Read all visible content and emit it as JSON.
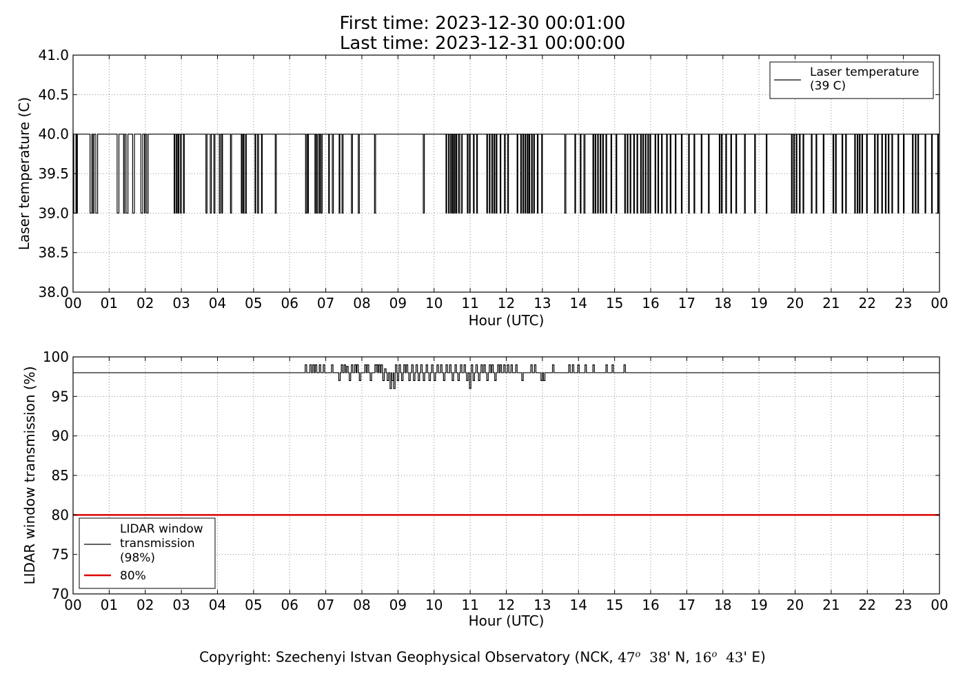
{
  "header": {
    "title_line1": "First time: 2023-12-30 00:01:00",
    "title_line2": "Last time: 2023-12-31 00:00:00"
  },
  "footer": {
    "prefix": "Copyright: Szechenyi Istvan Geophysical Observatory (NCK, ",
    "lat_deg": "47",
    "deg_sup": "o",
    "lat_min": "38",
    "lat_hemi": "' N, ",
    "lon_deg": "16",
    "lon_min": "43",
    "lon_hemi": "' E)"
  },
  "colors": {
    "series_line": "#000000",
    "threshold_line": "#dd0000",
    "grid": "#888888",
    "frame": "#000000"
  },
  "chart_data": [
    {
      "type": "line",
      "title": "",
      "xlabel": "Hour (UTC)",
      "ylabel": "Laser temperature (C)",
      "xlim": [
        0,
        24
      ],
      "ylim": [
        38.0,
        41.0
      ],
      "x_ticks": [
        "00",
        "01",
        "02",
        "03",
        "04",
        "05",
        "06",
        "07",
        "08",
        "09",
        "10",
        "11",
        "12",
        "13",
        "14",
        "15",
        "16",
        "17",
        "18",
        "19",
        "20",
        "21",
        "22",
        "23",
        "00"
      ],
      "y_ticks": [
        "38.0",
        "38.5",
        "39.0",
        "39.5",
        "40.0",
        "40.5",
        "41.0"
      ],
      "grid": true,
      "legend_position": "top-right",
      "series": [
        {
          "name": "Laser temperature\n(39 C)",
          "color": "#000000",
          "baseline": 40.0,
          "dip_value": 39.0,
          "dips_hours": [
            [
              0.02,
              0.08
            ],
            [
              0.1,
              0.12
            ],
            [
              0.47,
              0.52
            ],
            [
              0.55,
              0.58
            ],
            [
              0.63,
              0.68
            ],
            [
              1.22,
              1.27
            ],
            [
              1.4,
              1.43
            ],
            [
              1.47,
              1.52
            ],
            [
              1.65,
              1.7
            ],
            [
              1.88,
              1.93
            ],
            [
              1.98,
              2.0
            ],
            [
              2.04,
              2.08
            ],
            [
              2.8,
              2.82
            ],
            [
              2.86,
              2.88
            ],
            [
              2.91,
              2.93
            ],
            [
              2.97,
              3.0
            ],
            [
              3.06,
              3.08
            ],
            [
              3.68,
              3.71
            ],
            [
              3.8,
              3.83
            ],
            [
              3.9,
              3.93
            ],
            [
              4.05,
              4.08
            ],
            [
              4.12,
              4.14
            ],
            [
              4.36,
              4.39
            ],
            [
              4.66,
              4.68
            ],
            [
              4.71,
              4.73
            ],
            [
              4.77,
              4.8
            ],
            [
              5.04,
              5.06
            ],
            [
              5.11,
              5.14
            ],
            [
              5.22,
              5.24
            ],
            [
              5.6,
              5.63
            ],
            [
              6.44,
              6.47
            ],
            [
              6.5,
              6.52
            ],
            [
              6.7,
              6.72
            ],
            [
              6.75,
              6.78
            ],
            [
              6.82,
              6.84
            ],
            [
              6.87,
              6.9
            ],
            [
              7.08,
              7.1
            ],
            [
              7.18,
              7.21
            ],
            [
              7.37,
              7.39
            ],
            [
              7.45,
              7.48
            ],
            [
              7.71,
              7.74
            ],
            [
              7.9,
              7.93
            ],
            [
              8.35,
              8.38
            ],
            [
              9.7,
              9.73
            ],
            [
              10.33,
              10.35
            ],
            [
              10.4,
              10.42
            ],
            [
              10.46,
              10.48
            ],
            [
              10.51,
              10.53
            ],
            [
              10.56,
              10.58
            ],
            [
              10.61,
              10.63
            ],
            [
              10.68,
              10.7
            ],
            [
              10.75,
              10.78
            ],
            [
              10.92,
              10.94
            ],
            [
              10.98,
              11.0
            ],
            [
              11.09,
              11.11
            ],
            [
              11.18,
              11.2
            ],
            [
              11.46,
              11.48
            ],
            [
              11.53,
              11.55
            ],
            [
              11.6,
              11.62
            ],
            [
              11.66,
              11.68
            ],
            [
              11.72,
              11.74
            ],
            [
              11.83,
              11.85
            ],
            [
              11.95,
              11.97
            ],
            [
              12.04,
              12.06
            ],
            [
              12.3,
              12.32
            ],
            [
              12.4,
              12.42
            ],
            [
              12.46,
              12.48
            ],
            [
              12.52,
              12.54
            ],
            [
              12.58,
              12.6
            ],
            [
              12.63,
              12.65
            ],
            [
              12.7,
              12.72
            ],
            [
              12.76,
              12.78
            ],
            [
              12.86,
              12.88
            ],
            [
              12.98,
              13.0
            ],
            [
              13.62,
              13.65
            ],
            [
              13.9,
              13.92
            ],
            [
              14.05,
              14.07
            ],
            [
              14.15,
              14.18
            ],
            [
              14.4,
              14.42
            ],
            [
              14.46,
              14.48
            ],
            [
              14.53,
              14.55
            ],
            [
              14.6,
              14.62
            ],
            [
              14.67,
              14.69
            ],
            [
              14.76,
              14.78
            ],
            [
              14.9,
              14.92
            ],
            [
              15.04,
              15.06
            ],
            [
              15.28,
              15.3
            ],
            [
              15.35,
              15.37
            ],
            [
              15.43,
              15.45
            ],
            [
              15.53,
              15.55
            ],
            [
              15.62,
              15.64
            ],
            [
              15.72,
              15.74
            ],
            [
              15.78,
              15.8
            ],
            [
              15.85,
              15.87
            ],
            [
              15.92,
              15.94
            ],
            [
              15.98,
              16.0
            ],
            [
              16.12,
              16.14
            ],
            [
              16.2,
              16.22
            ],
            [
              16.3,
              16.32
            ],
            [
              16.44,
              16.46
            ],
            [
              16.54,
              16.56
            ],
            [
              16.68,
              16.7
            ],
            [
              16.85,
              16.87
            ],
            [
              17.05,
              17.07
            ],
            [
              17.2,
              17.22
            ],
            [
              17.4,
              17.42
            ],
            [
              17.6,
              17.62
            ],
            [
              17.9,
              17.92
            ],
            [
              17.96,
              17.98
            ],
            [
              18.08,
              18.1
            ],
            [
              18.22,
              18.24
            ],
            [
              18.36,
              18.38
            ],
            [
              18.6,
              18.62
            ],
            [
              18.88,
              18.9
            ],
            [
              19.2,
              19.22
            ],
            [
              19.9,
              19.92
            ],
            [
              19.96,
              19.98
            ],
            [
              20.03,
              20.05
            ],
            [
              20.12,
              20.14
            ],
            [
              20.22,
              20.24
            ],
            [
              20.45,
              20.47
            ],
            [
              20.58,
              20.6
            ],
            [
              20.78,
              20.8
            ],
            [
              21.05,
              21.07
            ],
            [
              21.12,
              21.14
            ],
            [
              21.3,
              21.32
            ],
            [
              21.4,
              21.42
            ],
            [
              21.65,
              21.67
            ],
            [
              21.72,
              21.74
            ],
            [
              21.78,
              21.8
            ],
            [
              21.85,
              21.87
            ],
            [
              21.98,
              22.0
            ],
            [
              22.2,
              22.22
            ],
            [
              22.28,
              22.3
            ],
            [
              22.4,
              22.42
            ],
            [
              22.5,
              22.52
            ],
            [
              22.58,
              22.6
            ],
            [
              22.68,
              22.7
            ],
            [
              22.85,
              22.87
            ],
            [
              23.0,
              23.02
            ],
            [
              23.25,
              23.27
            ],
            [
              23.33,
              23.35
            ],
            [
              23.4,
              23.42
            ],
            [
              23.6,
              23.62
            ],
            [
              23.78,
              23.8
            ],
            [
              23.95,
              23.97
            ]
          ]
        }
      ]
    },
    {
      "type": "line",
      "title": "",
      "xlabel": "Hour (UTC)",
      "ylabel": "LIDAR window transmission (%)",
      "xlim": [
        0,
        24
      ],
      "ylim": [
        70,
        100
      ],
      "x_ticks": [
        "00",
        "01",
        "02",
        "03",
        "04",
        "05",
        "06",
        "07",
        "08",
        "09",
        "10",
        "11",
        "12",
        "13",
        "14",
        "15",
        "16",
        "17",
        "18",
        "19",
        "20",
        "21",
        "22",
        "23",
        "00"
      ],
      "y_ticks": [
        "70",
        "75",
        "80",
        "85",
        "90",
        "95",
        "100"
      ],
      "grid": true,
      "legend_position": "bottom-left",
      "series": [
        {
          "name": "LIDAR window\ntransmission\n(98%)",
          "color": "#000000",
          "baseline": 98,
          "spikes": [
            [
              6.45,
              99
            ],
            [
              6.58,
              99
            ],
            [
              6.66,
              99
            ],
            [
              6.73,
              99
            ],
            [
              6.84,
              99
            ],
            [
              6.95,
              99
            ],
            [
              7.18,
              99
            ],
            [
              7.38,
              97
            ],
            [
              7.45,
              99
            ],
            [
              7.53,
              99
            ],
            [
              7.6,
              98.8
            ],
            [
              7.67,
              97
            ],
            [
              7.73,
              99
            ],
            [
              7.82,
              99
            ],
            [
              7.88,
              99
            ],
            [
              7.95,
              97
            ],
            [
              8.1,
              99
            ],
            [
              8.17,
              99
            ],
            [
              8.25,
              97
            ],
            [
              8.38,
              99
            ],
            [
              8.42,
              99
            ],
            [
              8.48,
              99
            ],
            [
              8.55,
              99
            ],
            [
              8.6,
              97
            ],
            [
              8.65,
              98.5
            ],
            [
              8.72,
              97
            ],
            [
              8.8,
              96
            ],
            [
              8.85,
              97
            ],
            [
              8.9,
              96
            ],
            [
              8.95,
              99
            ],
            [
              9.0,
              97
            ],
            [
              9.05,
              99
            ],
            [
              9.12,
              97
            ],
            [
              9.18,
              99
            ],
            [
              9.25,
              99
            ],
            [
              9.32,
              97
            ],
            [
              9.4,
              99
            ],
            [
              9.45,
              97
            ],
            [
              9.52,
              99
            ],
            [
              9.58,
              97
            ],
            [
              9.65,
              99
            ],
            [
              9.72,
              97
            ],
            [
              9.8,
              99
            ],
            [
              9.88,
              97
            ],
            [
              9.95,
              99
            ],
            [
              10.02,
              97
            ],
            [
              10.1,
              99
            ],
            [
              10.2,
              99
            ],
            [
              10.28,
              97
            ],
            [
              10.35,
              99
            ],
            [
              10.45,
              99
            ],
            [
              10.52,
              97
            ],
            [
              10.6,
              99
            ],
            [
              10.68,
              97
            ],
            [
              10.75,
              99
            ],
            [
              10.85,
              99
            ],
            [
              10.92,
              97
            ],
            [
              11.0,
              96
            ],
            [
              11.05,
              99
            ],
            [
              11.1,
              97
            ],
            [
              11.18,
              99
            ],
            [
              11.25,
              97
            ],
            [
              11.32,
              99
            ],
            [
              11.4,
              99
            ],
            [
              11.48,
              97
            ],
            [
              11.55,
              99
            ],
            [
              11.62,
              99
            ],
            [
              11.7,
              97
            ],
            [
              11.78,
              99
            ],
            [
              11.85,
              99
            ],
            [
              11.95,
              99
            ],
            [
              12.05,
              99
            ],
            [
              12.15,
              99
            ],
            [
              12.28,
              99
            ],
            [
              12.45,
              97
            ],
            [
              12.7,
              99
            ],
            [
              12.8,
              99
            ],
            [
              12.98,
              97
            ],
            [
              13.05,
              97
            ],
            [
              13.3,
              99
            ],
            [
              13.75,
              99
            ],
            [
              13.85,
              99
            ],
            [
              14.0,
              99
            ],
            [
              14.2,
              99
            ],
            [
              14.42,
              99
            ],
            [
              14.78,
              99
            ],
            [
              14.95,
              99
            ],
            [
              15.28,
              99
            ]
          ]
        },
        {
          "name": "80%",
          "color": "#dd0000",
          "values": [
            80,
            80
          ],
          "x": [
            0,
            24
          ]
        }
      ]
    }
  ]
}
